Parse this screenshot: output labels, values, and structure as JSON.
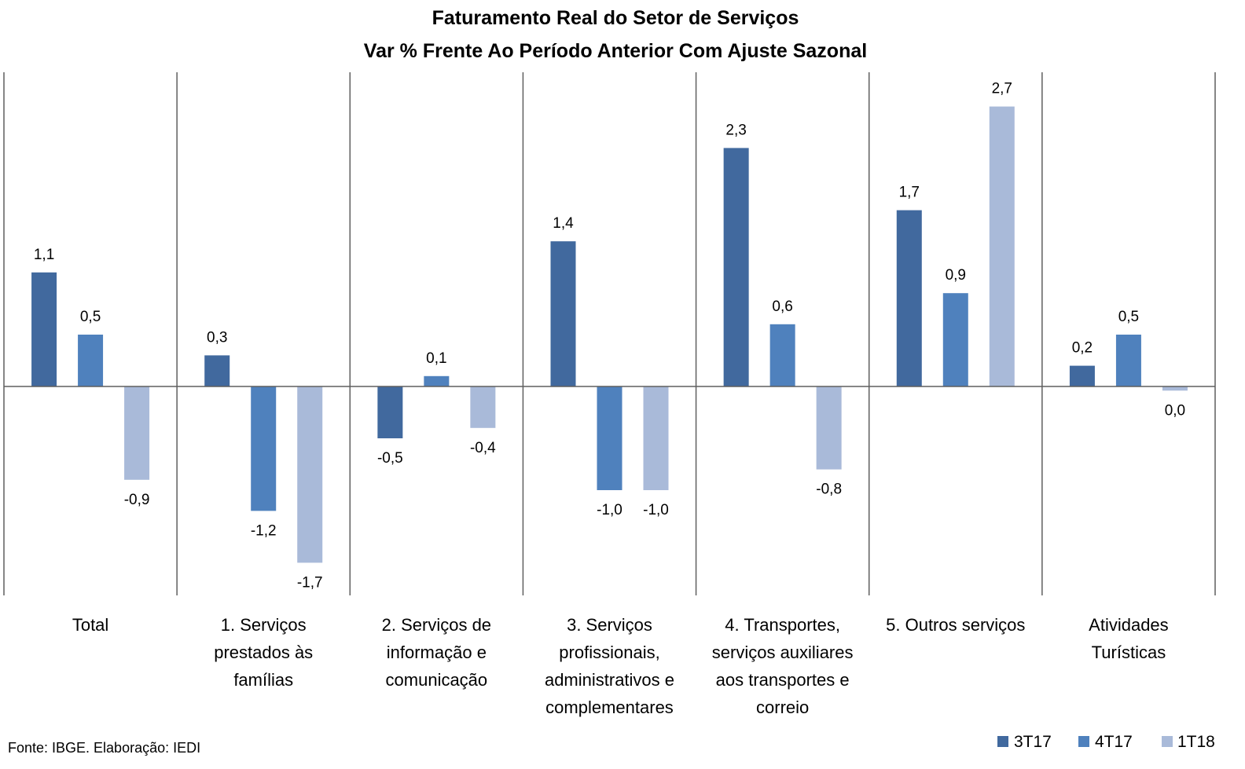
{
  "chart_data": {
    "type": "bar",
    "title": "Faturamento Real do Setor de Serviços",
    "subtitle": "Var % Frente Ao Período Anterior Com Ajuste Sazonal",
    "categories": [
      [
        "Total"
      ],
      [
        "1. Serviços",
        "prestados às",
        "famílias"
      ],
      [
        "2. Serviços de",
        "informação e",
        "comunicação"
      ],
      [
        "3. Serviços",
        "profissionais,",
        "administrativos e",
        "complementares"
      ],
      [
        "4. Transportes,",
        "serviços auxiliares",
        "aos transportes e",
        "correio"
      ],
      [
        "5. Outros serviços"
      ],
      [
        "Atividades",
        "Turísticas"
      ]
    ],
    "series": [
      {
        "name": "3T17",
        "color": "#41699E",
        "values": [
          1.1,
          0.3,
          -0.5,
          1.4,
          2.3,
          1.7,
          0.2
        ],
        "labels": [
          "1,1",
          "0,3",
          "-0,5",
          "1,4",
          "2,3",
          "1,7",
          "0,2"
        ]
      },
      {
        "name": "4T17",
        "color": "#4F81BD",
        "values": [
          0.5,
          -1.2,
          0.1,
          -1.0,
          0.6,
          0.9,
          0.5
        ],
        "labels": [
          "0,5",
          "-1,2",
          "0,1",
          "-1,0",
          "0,6",
          "0,9",
          "0,5"
        ]
      },
      {
        "name": "1T18",
        "color": "#A9BAD9",
        "values": [
          -0.9,
          -1.7,
          -0.4,
          -1.0,
          -0.8,
          2.7,
          -0.04
        ],
        "labels": [
          "-0,9",
          "-1,7",
          "-0,4",
          "-1,0",
          "-0,8",
          "2,7",
          "0,0"
        ]
      }
    ],
    "ylim": [
      -2,
      3
    ],
    "grid": false,
    "category_separators": true,
    "legend": "bottom-right",
    "axis_color": "#5F5F5F"
  },
  "source": "Fonte: IBGE. Elaboração: IEDI"
}
